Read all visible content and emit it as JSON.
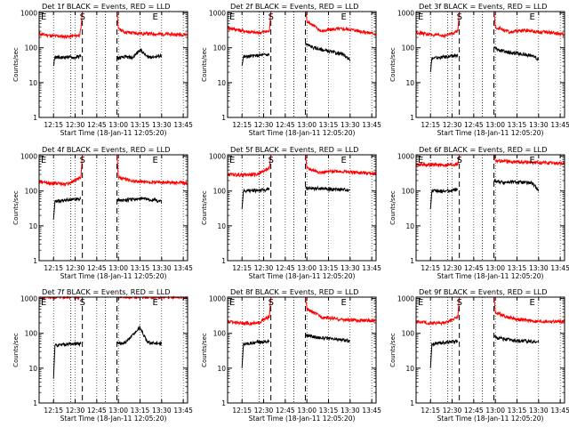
{
  "common": {
    "ylabel": "Counts/sec",
    "xlabel": "Start Time (18-Jan-11 12:05:20)",
    "x_ticks": [
      "12:15",
      "12:30",
      "12:45",
      "13:00",
      "13:15",
      "13:30",
      "13:45"
    ],
    "y_ticks": [
      "1",
      "10",
      "100",
      "1000"
    ],
    "marker_labels": [
      "E",
      "S",
      "E"
    ],
    "colors": {
      "events": "#000000",
      "lld": "#ff0000",
      "axis": "#000000",
      "background": "#ffffff"
    }
  },
  "chart_data": [
    {
      "type": "line",
      "title": "Det 1f BLACK = Events, RED = LLD",
      "xlabel": "Start Time (18-Jan-11 12:05:20)",
      "ylabel": "Counts/sec",
      "x_units": "clock time (minutes after 12:05:20 start)",
      "xlim": [
        "12:05",
        "13:48"
      ],
      "ylim": [
        1,
        1100
      ],
      "yscale": "log",
      "grid": "dotted vertical",
      "markers": {
        "dotted": [
          "12:27",
          "12:51"
        ],
        "dashed": [
          "12:35",
          "12:59"
        ]
      },
      "series": [
        {
          "name": "Events",
          "color": "#000000",
          "segments": [
            {
              "x": [
                "12:15",
                "12:16",
                "12:20",
                "12:25",
                "12:30",
                "12:34"
              ],
              "y": [
                30,
                55,
                52,
                55,
                52,
                60
              ]
            },
            {
              "x": [
                "12:59",
                "13:05",
                "13:10",
                "13:15",
                "13:20",
                "13:25",
                "13:30"
              ],
              "y": [
                50,
                55,
                52,
                90,
                55,
                55,
                60
              ]
            }
          ]
        },
        {
          "name": "LLD",
          "color": "#ff0000",
          "segments": [
            {
              "x": [
                "12:05",
                "12:15",
                "12:25",
                "12:33",
                "12:34",
                "12:35"
              ],
              "y": [
                250,
                220,
                210,
                230,
                350,
                1200
              ]
            },
            {
              "x": [
                "12:59",
                "13:00",
                "13:05",
                "13:15",
                "13:25",
                "13:48"
              ],
              "y": [
                1200,
                350,
                280,
                260,
                250,
                240
              ]
            }
          ]
        }
      ]
    },
    {
      "type": "line",
      "title": "Det 2f BLACK = Events, RED = LLD",
      "xlabel": "Start Time (18-Jan-11 12:05:20)",
      "ylabel": "Counts/sec",
      "xlim": [
        "12:05",
        "13:48"
      ],
      "ylim": [
        1,
        1100
      ],
      "yscale": "log",
      "markers": {
        "dotted": [
          "12:27",
          "12:51"
        ],
        "dashed": [
          "12:35",
          "12:59"
        ]
      },
      "series": [
        {
          "name": "Events",
          "color": "#000000",
          "segments": [
            {
              "x": [
                "12:15",
                "12:16",
                "12:25",
                "12:34"
              ],
              "y": [
                30,
                55,
                60,
                65
              ]
            },
            {
              "x": [
                "12:59",
                "13:05",
                "13:15",
                "13:25",
                "13:30"
              ],
              "y": [
                130,
                100,
                80,
                65,
                45
              ]
            }
          ]
        },
        {
          "name": "LLD",
          "color": "#ff0000",
          "segments": [
            {
              "x": [
                "12:05",
                "12:15",
                "12:25",
                "12:34",
                "12:35"
              ],
              "y": [
                380,
                310,
                270,
                300,
                1200
              ]
            },
            {
              "x": [
                "12:59",
                "13:00",
                "13:10",
                "13:20",
                "13:30",
                "13:48"
              ],
              "y": [
                1200,
                600,
                300,
                350,
                340,
                250
              ]
            }
          ]
        }
      ]
    },
    {
      "type": "line",
      "title": "Det 3f BLACK = Events, RED = LLD",
      "xlabel": "Start Time (18-Jan-11 12:05:20)",
      "ylabel": "Counts/sec",
      "xlim": [
        "12:05",
        "13:48"
      ],
      "ylim": [
        1,
        1100
      ],
      "yscale": "log",
      "markers": {
        "dotted": [
          "12:27",
          "12:51"
        ],
        "dashed": [
          "12:35",
          "12:59"
        ]
      },
      "series": [
        {
          "name": "Events",
          "color": "#000000",
          "segments": [
            {
              "x": [
                "12:15",
                "12:16",
                "12:25",
                "12:34"
              ],
              "y": [
                20,
                50,
                55,
                60
              ]
            },
            {
              "x": [
                "12:59",
                "13:05",
                "13:15",
                "13:25",
                "13:30"
              ],
              "y": [
                100,
                80,
                70,
                60,
                45
              ]
            }
          ]
        },
        {
          "name": "LLD",
          "color": "#ff0000",
          "segments": [
            {
              "x": [
                "12:05",
                "12:15",
                "12:25",
                "12:34",
                "12:35"
              ],
              "y": [
                280,
                240,
                220,
                300,
                1200
              ]
            },
            {
              "x": [
                "12:59",
                "13:00",
                "13:10",
                "13:20",
                "13:30",
                "13:48"
              ],
              "y": [
                1200,
                400,
                280,
                320,
                290,
                250
              ]
            }
          ]
        }
      ]
    },
    {
      "type": "line",
      "title": "Det 4f BLACK = Events, RED = LLD",
      "xlabel": "Start Time (18-Jan-11 12:05:20)",
      "ylabel": "Counts/sec",
      "xlim": [
        "12:05",
        "13:48"
      ],
      "ylim": [
        1,
        1100
      ],
      "yscale": "log",
      "markers": {
        "dotted": [
          "12:27",
          "12:51"
        ],
        "dashed": [
          "12:35",
          "12:59"
        ]
      },
      "series": [
        {
          "name": "Events",
          "color": "#000000",
          "segments": [
            {
              "x": [
                "12:15",
                "12:16",
                "12:25",
                "12:34"
              ],
              "y": [
                15,
                50,
                55,
                60
              ]
            },
            {
              "x": [
                "12:59",
                "13:05",
                "13:15",
                "13:25",
                "13:30"
              ],
              "y": [
                55,
                55,
                60,
                55,
                50
              ]
            }
          ]
        },
        {
          "name": "LLD",
          "color": "#ff0000",
          "segments": [
            {
              "x": [
                "12:05",
                "12:15",
                "12:25",
                "12:34",
                "12:35"
              ],
              "y": [
                180,
                170,
                160,
                250,
                1200
              ]
            },
            {
              "x": [
                "12:59",
                "13:00",
                "13:10",
                "13:20",
                "13:30",
                "13:48"
              ],
              "y": [
                1200,
                250,
                190,
                180,
                180,
                170
              ]
            }
          ]
        }
      ]
    },
    {
      "type": "line",
      "title": "Det 5f BLACK = Events, RED = LLD",
      "xlabel": "Start Time (18-Jan-11 12:05:20)",
      "ylabel": "Counts/sec",
      "xlim": [
        "12:05",
        "13:48"
      ],
      "ylim": [
        1,
        1100
      ],
      "yscale": "log",
      "markers": {
        "dotted": [
          "12:27",
          "12:51"
        ],
        "dashed": [
          "12:35",
          "12:59"
        ]
      },
      "series": [
        {
          "name": "Events",
          "color": "#000000",
          "segments": [
            {
              "x": [
                "12:15",
                "12:16",
                "12:25",
                "12:34"
              ],
              "y": [
                30,
                100,
                105,
                110
              ]
            },
            {
              "x": [
                "12:59",
                "13:05",
                "13:15",
                "13:25",
                "13:30"
              ],
              "y": [
                120,
                120,
                115,
                110,
                110
              ]
            }
          ]
        },
        {
          "name": "LLD",
          "color": "#ff0000",
          "segments": [
            {
              "x": [
                "12:05",
                "12:15",
                "12:25",
                "12:34",
                "12:35"
              ],
              "y": [
                300,
                290,
                300,
                450,
                1200
              ]
            },
            {
              "x": [
                "12:59",
                "13:00",
                "13:10",
                "13:20",
                "13:30",
                "13:48"
              ],
              "y": [
                1200,
                450,
                340,
                380,
                350,
                320
              ]
            }
          ]
        }
      ]
    },
    {
      "type": "line",
      "title": "Det 6f BLACK = Events, RED = LLD",
      "xlabel": "Start Time (18-Jan-11 12:05:20)",
      "ylabel": "Counts/sec",
      "xlim": [
        "12:05",
        "13:48"
      ],
      "ylim": [
        1,
        1100
      ],
      "yscale": "log",
      "markers": {
        "dotted": [
          "12:27",
          "12:51"
        ],
        "dashed": [
          "12:35",
          "12:59"
        ]
      },
      "series": [
        {
          "name": "Events",
          "color": "#000000",
          "segments": [
            {
              "x": [
                "12:15",
                "12:16",
                "12:25",
                "12:34"
              ],
              "y": [
                30,
                100,
                100,
                110
              ]
            },
            {
              "x": [
                "12:59",
                "13:05",
                "13:15",
                "13:25",
                "13:30"
              ],
              "y": [
                200,
                180,
                180,
                170,
                110
              ]
            }
          ]
        },
        {
          "name": "LLD",
          "color": "#ff0000",
          "segments": [
            {
              "x": [
                "12:05",
                "12:15",
                "12:25",
                "12:34",
                "12:35"
              ],
              "y": [
                580,
                570,
                560,
                590,
                1200
              ]
            },
            {
              "x": [
                "12:59",
                "13:00",
                "13:10",
                "13:20",
                "13:30",
                "13:48"
              ],
              "y": [
                1200,
                750,
                700,
                680,
                650,
                620
              ]
            }
          ]
        }
      ]
    },
    {
      "type": "line",
      "title": "Det 7f BLACK = Events, RED = LLD",
      "xlabel": "Start Time (18-Jan-11 12:05:20)",
      "ylabel": "Counts/sec",
      "xlim": [
        "12:05",
        "13:48"
      ],
      "ylim": [
        1,
        1100
      ],
      "yscale": "log",
      "markers": {
        "dotted": [
          "12:27",
          "12:51"
        ],
        "dashed": [
          "12:35",
          "12:59"
        ]
      },
      "series": [
        {
          "name": "Events",
          "color": "#000000",
          "segments": [
            {
              "x": [
                "12:15",
                "12:16",
                "12:25",
                "12:34"
              ],
              "y": [
                5,
                45,
                50,
                50
              ]
            },
            {
              "x": [
                "12:59",
                "13:05",
                "13:15",
                "13:20",
                "13:30"
              ],
              "y": [
                50,
                55,
                150,
                55,
                50
              ]
            }
          ]
        },
        {
          "name": "LLD",
          "color": "#ff0000",
          "segments": [
            {
              "x": [
                "12:05",
                "12:15",
                "12:25",
                "12:34",
                "12:35"
              ],
              "y": [
                1100,
                1100,
                1100,
                1100,
                1200
              ]
            },
            {
              "x": [
                "12:59",
                "13:00",
                "13:10",
                "13:20",
                "13:30",
                "13:48"
              ],
              "y": [
                1200,
                1100,
                1100,
                1100,
                1100,
                1100
              ]
            }
          ]
        }
      ]
    },
    {
      "type": "line",
      "title": "Det 8f BLACK = Events, RED = LLD",
      "xlabel": "Start Time (18-Jan-11 12:05:20)",
      "ylabel": "Counts/sec",
      "xlim": [
        "12:05",
        "13:48"
      ],
      "ylim": [
        1,
        1100
      ],
      "yscale": "log",
      "markers": {
        "dotted": [
          "12:27",
          "12:51"
        ],
        "dashed": [
          "12:35",
          "12:59"
        ]
      },
      "series": [
        {
          "name": "Events",
          "color": "#000000",
          "segments": [
            {
              "x": [
                "12:15",
                "12:16",
                "12:25",
                "12:34"
              ],
              "y": [
                10,
                50,
                55,
                60
              ]
            },
            {
              "x": [
                "12:59",
                "13:05",
                "13:15",
                "13:25",
                "13:30"
              ],
              "y": [
                90,
                80,
                70,
                65,
                60
              ]
            }
          ]
        },
        {
          "name": "LLD",
          "color": "#ff0000",
          "segments": [
            {
              "x": [
                "12:05",
                "12:15",
                "12:25",
                "12:34",
                "12:35"
              ],
              "y": [
                220,
                200,
                190,
                300,
                1200
              ]
            },
            {
              "x": [
                "12:59",
                "13:00",
                "13:10",
                "13:20",
                "13:30",
                "13:48"
              ],
              "y": [
                1200,
                500,
                300,
                260,
                240,
                230
              ]
            }
          ]
        }
      ]
    },
    {
      "type": "line",
      "title": "Det 9f BLACK = Events, RED = LLD",
      "xlabel": "Start Time (18-Jan-11 12:05:20)",
      "ylabel": "Counts/sec",
      "xlim": [
        "12:05",
        "13:48"
      ],
      "ylim": [
        1,
        1100
      ],
      "yscale": "log",
      "markers": {
        "dotted": [
          "12:27",
          "12:51"
        ],
        "dashed": [
          "12:35",
          "12:59"
        ]
      },
      "series": [
        {
          "name": "Events",
          "color": "#000000",
          "segments": [
            {
              "x": [
                "12:15",
                "12:16",
                "12:25",
                "12:34"
              ],
              "y": [
                10,
                50,
                55,
                60
              ]
            },
            {
              "x": [
                "12:59",
                "13:05",
                "13:15",
                "13:25",
                "13:30"
              ],
              "y": [
                80,
                70,
                60,
                60,
                55
              ]
            }
          ]
        },
        {
          "name": "LLD",
          "color": "#ff0000",
          "segments": [
            {
              "x": [
                "12:05",
                "12:15",
                "12:25",
                "12:34",
                "12:35"
              ],
              "y": [
                220,
                200,
                200,
                300,
                1200
              ]
            },
            {
              "x": [
                "12:59",
                "13:00",
                "13:10",
                "13:20",
                "13:30",
                "13:48"
              ],
              "y": [
                1200,
                400,
                280,
                240,
                220,
                220
              ]
            }
          ]
        }
      ]
    }
  ]
}
